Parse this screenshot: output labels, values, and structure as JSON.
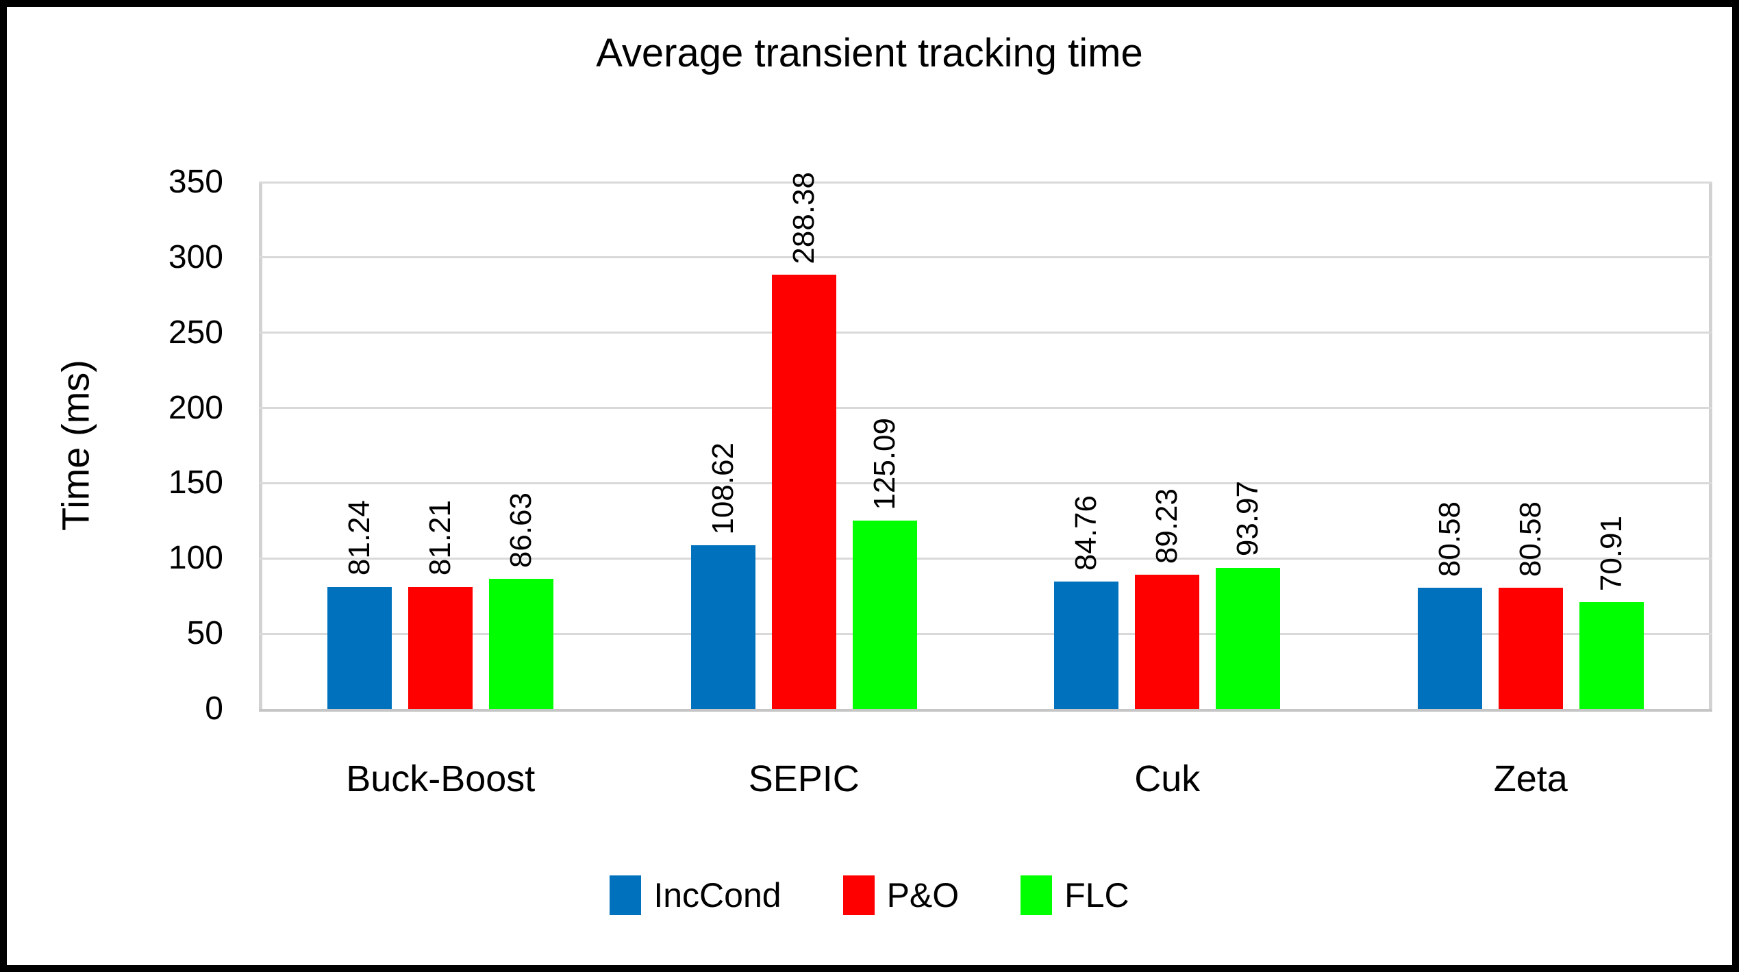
{
  "title": "Average transient tracking time",
  "chart_data": {
    "type": "bar",
    "title": "Average transient tracking time",
    "categories": [
      "Buck-Boost",
      "SEPIC",
      "Cuk",
      "Zeta"
    ],
    "series": [
      {
        "name": "IncCond",
        "color": "#0072BD",
        "values": [
          81.24,
          108.62,
          84.76,
          80.58
        ],
        "labels": [
          "81.24",
          "108.62",
          "84.76",
          "80.58"
        ]
      },
      {
        "name": "P&O",
        "color": "#FF0000",
        "values": [
          81.21,
          288.38,
          89.23,
          80.58
        ],
        "labels": [
          "81.21",
          "288.38",
          "89.23",
          "80.58"
        ]
      },
      {
        "name": "FLC",
        "color": "#00FF00",
        "values": [
          86.63,
          125.09,
          93.97,
          70.91
        ],
        "labels": [
          "86.63",
          "125.09",
          "93.97",
          "70.91"
        ]
      }
    ],
    "xlabel": "",
    "ylabel": "Time (ms)",
    "ylim": [
      0,
      350
    ],
    "yticks": [
      0,
      50,
      100,
      150,
      200,
      250,
      300,
      350
    ],
    "grid": true,
    "data_labels_rotated": true,
    "legend_position": "bottom"
  },
  "colors": {
    "gridline": "#D9D9D9",
    "zero_axis": "#C6C6C6",
    "plot_border": "#D2D2D2",
    "text": "#000000",
    "figure_border": "#000000",
    "background": "#FFFFFF"
  }
}
